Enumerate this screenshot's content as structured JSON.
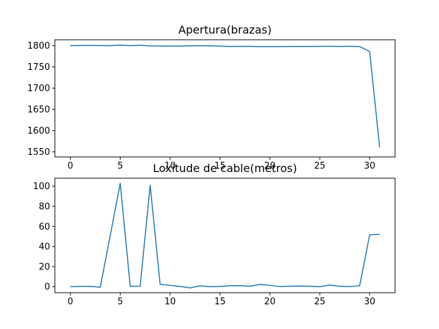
{
  "chart_data": [
    {
      "type": "line",
      "title": "Apertura(brazas)",
      "xlabel": "",
      "ylabel": "",
      "xlim": [
        -1.55,
        32.55
      ],
      "ylim": [
        1538,
        1814
      ],
      "xticks": [
        0,
        5,
        10,
        15,
        20,
        25,
        30
      ],
      "yticks": [
        1550,
        1600,
        1650,
        1700,
        1750,
        1800
      ],
      "grid": false,
      "color": "#1f77b4",
      "series": [
        {
          "x": [
            0,
            1,
            2,
            3,
            4,
            5,
            6,
            7,
            8,
            9,
            10,
            11,
            12,
            13,
            14,
            15,
            16,
            17,
            18,
            19,
            20,
            21,
            22,
            23,
            24,
            25,
            26,
            27,
            28,
            29,
            30,
            31
          ],
          "values": [
            1800,
            1800.5,
            1800.5,
            1800.3,
            1800,
            1801.5,
            1800,
            1800.8,
            1799.5,
            1799.3,
            1799,
            1799,
            1799.6,
            1799.8,
            1799.8,
            1798.8,
            1798.3,
            1798.4,
            1798.4,
            1797.9,
            1797.9,
            1797.8,
            1798.2,
            1798.3,
            1798.3,
            1798.5,
            1798.6,
            1798.2,
            1798.7,
            1798,
            1786.5,
            1561
          ]
        }
      ]
    },
    {
      "type": "line",
      "title": "Loxitude de cable(metros)",
      "xlabel": "",
      "ylabel": "",
      "xlim": [
        -1.55,
        32.55
      ],
      "ylim": [
        -6,
        108
      ],
      "xticks": [
        0,
        5,
        10,
        15,
        20,
        25,
        30
      ],
      "yticks": [
        0,
        20,
        40,
        60,
        80,
        100
      ],
      "grid": false,
      "color": "#1f77b4",
      "series": [
        {
          "x": [
            0,
            1,
            2,
            3,
            4,
            5,
            6,
            7,
            8,
            9,
            10,
            11,
            12,
            13,
            14,
            15,
            16,
            17,
            18,
            19,
            20,
            21,
            22,
            23,
            24,
            25,
            26,
            27,
            28,
            29,
            30,
            31
          ],
          "values": [
            0,
            0.2,
            0.3,
            -0.5,
            51,
            103,
            0.3,
            0.5,
            101,
            2.3,
            1.3,
            0.2,
            -1.2,
            0.8,
            0,
            0.2,
            0.9,
            1,
            0.4,
            2.2,
            1.3,
            0.1,
            0.4,
            0.6,
            0.4,
            0,
            1.6,
            0.4,
            0.1,
            1,
            51.5,
            52.2
          ]
        }
      ]
    }
  ]
}
